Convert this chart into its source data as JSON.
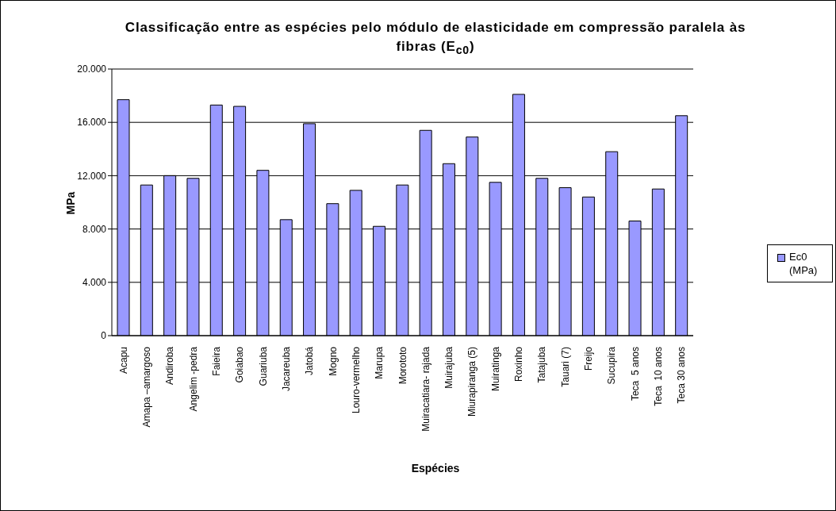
{
  "chart_data": {
    "type": "bar",
    "title": "Classificação entre as espécies pelo módulo de elasticidade em compressão paralela às fibras (E$_{c0}$)",
    "xlabel": "Espécies",
    "ylabel": "MPa",
    "categories": [
      "Acapu",
      "Amapa –amargoso",
      "Andiroba",
      "Angelim -pedra",
      "Faieira",
      "Goiabao",
      "Guariuba",
      "Jacareuba",
      "Jatobá",
      "Mogno",
      "Louro-vermelho",
      "Marupa",
      "Morototo",
      "Muiracatiara- rajada",
      "Muirajuba",
      "Miurapiranga (5)",
      "Muiratinga",
      "Roxinho",
      "Tatajuba",
      "Tauari (7)",
      "Freijo",
      "Sucupira",
      "Teca  5 anos",
      "Teca  10 anos",
      "Teca 30 anos"
    ],
    "series": [
      {
        "name": "Ec0 (MPa)",
        "color": "#9999ff",
        "values": [
          17700,
          11300,
          12000,
          11800,
          17300,
          17200,
          12400,
          8700,
          15900,
          9900,
          10900,
          8200,
          11300,
          15400,
          12900,
          14900,
          11500,
          18100,
          11800,
          11100,
          10400,
          13800,
          8600,
          11000,
          16500
        ]
      }
    ],
    "ylim": [
      0,
      20000
    ],
    "yticks": [
      {
        "value": 0,
        "label": "0"
      },
      {
        "value": 4000,
        "label": "4.000"
      },
      {
        "value": 8000,
        "label": "8.000"
      },
      {
        "value": 12000,
        "label": "12.000"
      },
      {
        "value": 16000,
        "label": "16.000"
      },
      {
        "value": 20000,
        "label": "20.000"
      }
    ],
    "grid": "y",
    "legend": "right"
  }
}
